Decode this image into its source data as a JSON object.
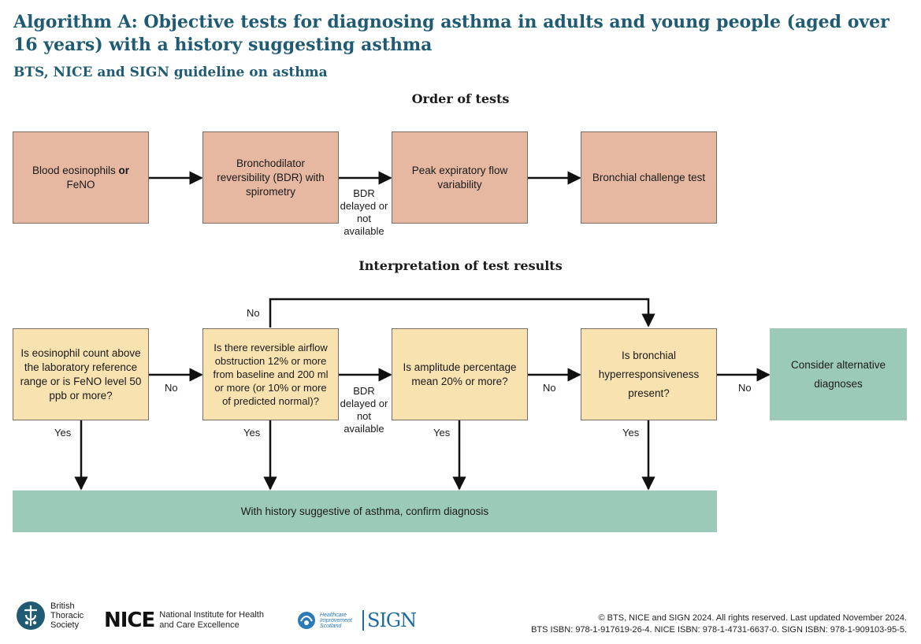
{
  "header": {
    "title": "Algorithm A: Objective tests for diagnosing asthma in adults and young people (aged over 16 years) with a history suggesting asthma",
    "subtitle": "BTS, NICE and SIGN guideline on asthma"
  },
  "order": {
    "heading": "Order of tests",
    "box1_pre": "Blood eosinophils ",
    "box1_or": "or",
    "box1_post": "FeNO",
    "box2": "Bronchodilator reversibility (BDR) with spirometry",
    "box3": "Peak expiratory flow variability",
    "box4": "Bronchial challenge test",
    "arrow_label": "BDR delayed or not available"
  },
  "interpretation": {
    "heading": "Interpretation of test results",
    "q1": "Is eosinophil count above the laboratory reference range or is FeNO level 50 ppb or more?",
    "q2": "Is there reversible airflow obstruction 12% or more from baseline and 200 ml or more (or 10% or more of predicted normal)?",
    "q3": "Is amplitude percentage mean 20% or more?",
    "q4": "Is bronchial hyperresponsiveness present?",
    "alt": "Consider alternative diagnoses",
    "confirm": "With history suggestive of asthma, confirm diagnosis",
    "no": "No",
    "yes": "Yes",
    "bdr_label": "BDR delayed or not available"
  },
  "footer": {
    "bts_logo_text": "British Thoracic Society",
    "nice_word": "NICE",
    "nice_sub": "National Institute for Health and Care Excellence",
    "his_text": "Healthcare Improvement Scotland",
    "sign_word": "SIGN",
    "copyright": "© BTS, NICE and SIGN 2024. All rights reserved. Last updated November 2024.",
    "isbn": "BTS ISBN: 978-1-917619-26-4. NICE ISBN: 978-1-4731-6637-0. SIGN ISBN: 978-1-909103-95-5."
  },
  "colors": {
    "title": "#1f5b73",
    "order_box": "#e6b8a2",
    "question_box": "#f8e2b0",
    "outcome_box": "#9ccab9"
  }
}
